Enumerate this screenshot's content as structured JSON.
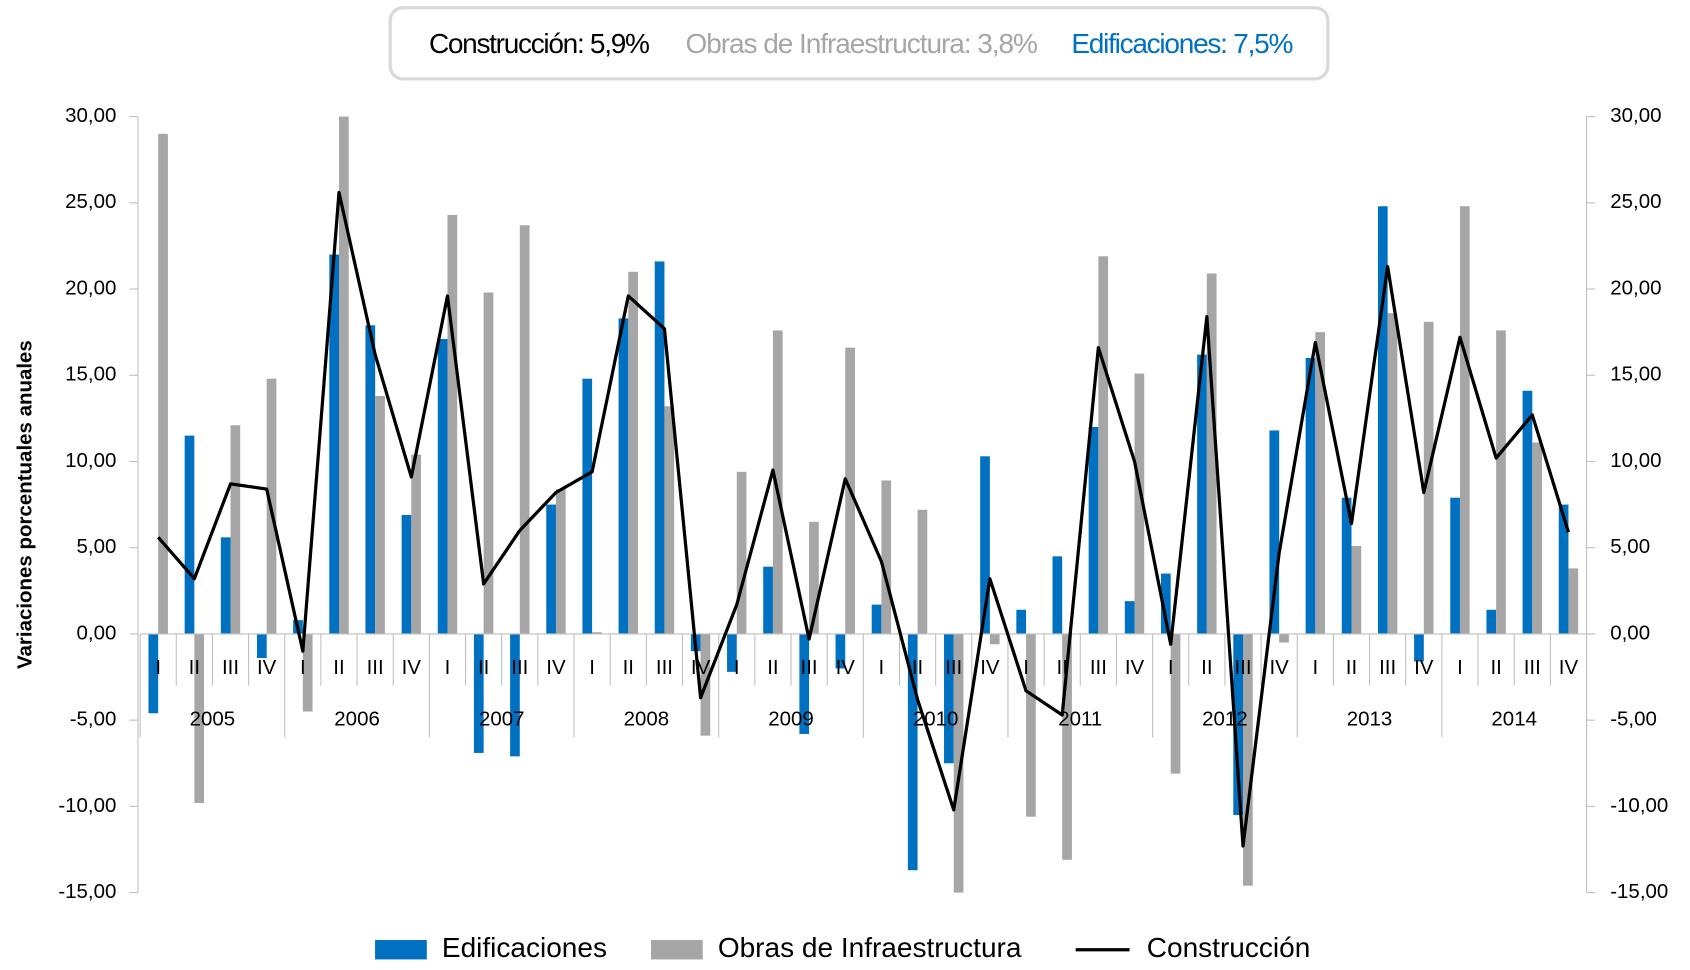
{
  "chart_data": {
    "type": "bar_line",
    "annotations": [
      {
        "text": "Construcción: 5,9%",
        "color": "#000000"
      },
      {
        "text": "Obras de Infraestructura: 3,8%",
        "color": "#a6a6a6"
      },
      {
        "text": "Edificaciones: 7,5%",
        "color": "#0070c0"
      }
    ],
    "ylabel": "Variaciones porcentuales anuales",
    "categories": [
      "I",
      "II",
      "III",
      "IV",
      "I",
      "II",
      "III",
      "IV",
      "I",
      "II",
      "III",
      "IV",
      "I",
      "II",
      "III",
      "IV",
      "I",
      "II",
      "III",
      "IV",
      "I",
      "II",
      "III",
      "IV",
      "I",
      "II",
      "III",
      "IV",
      "I",
      "II",
      "III",
      "IV",
      "I",
      "II",
      "III",
      "IV",
      "I",
      "II",
      "III",
      "IV"
    ],
    "groups": [
      "2005",
      "2006",
      "2007",
      "2008",
      "2009",
      "2010",
      "2011",
      "2012",
      "2013",
      "2014"
    ],
    "series": [
      {
        "name": "Edificaciones",
        "type": "bar",
        "color": "#0070c0",
        "values": [
          -4.6,
          11.5,
          5.6,
          -1.4,
          0.8,
          22.0,
          17.9,
          6.9,
          17.1,
          -6.9,
          -7.1,
          7.5,
          14.8,
          18.3,
          21.6,
          -1.0,
          -2.2,
          3.9,
          -5.8,
          -2.0,
          1.7,
          -13.7,
          -7.5,
          10.3,
          1.4,
          4.5,
          12.0,
          1.9,
          3.5,
          16.2,
          -10.5,
          11.8,
          16.0,
          7.9,
          24.8,
          -1.6,
          7.9,
          1.4,
          14.1,
          7.5
        ]
      },
      {
        "name": "Obras de Infraestructura",
        "type": "bar",
        "color": "#a6a6a6",
        "values": [
          29.0,
          -9.8,
          12.1,
          14.8,
          -4.5,
          30.0,
          13.8,
          10.4,
          24.3,
          19.8,
          23.7,
          8.4,
          0.1,
          21.0,
          13.2,
          -5.9,
          9.4,
          17.6,
          6.5,
          16.6,
          8.9,
          7.2,
          -15.0,
          -0.6,
          -10.6,
          -13.1,
          21.9,
          15.1,
          -8.1,
          20.9,
          -14.6,
          -0.5,
          17.5,
          5.1,
          18.6,
          18.1,
          24.8,
          17.6,
          11.1,
          3.8
        ]
      },
      {
        "name": "Construcción",
        "type": "line",
        "color": "#000000",
        "values": [
          5.6,
          3.2,
          8.7,
          8.4,
          -1.0,
          25.6,
          16.2,
          9.1,
          19.6,
          2.9,
          6.0,
          8.2,
          9.4,
          19.6,
          17.7,
          -3.7,
          1.7,
          9.5,
          -0.3,
          9.0,
          4.2,
          -3.8,
          -10.2,
          3.2,
          -3.3,
          -4.7,
          16.6,
          10.0,
          -0.6,
          18.4,
          -12.3,
          4.7,
          16.9,
          6.4,
          21.3,
          8.2,
          17.2,
          10.2,
          12.7,
          5.9
        ]
      }
    ],
    "ylim": [
      -15,
      30
    ],
    "yticks": [
      {
        "value": 30,
        "label": "30,00"
      },
      {
        "value": 25,
        "label": "25,00"
      },
      {
        "value": 20,
        "label": "20,00"
      },
      {
        "value": 15,
        "label": "15,00"
      },
      {
        "value": 10,
        "label": "10,00"
      },
      {
        "value": 5,
        "label": "5,00"
      },
      {
        "value": 0,
        "label": "0,00"
      },
      {
        "value": -5,
        "label": "-5,00"
      },
      {
        "value": -10,
        "label": "-10,00"
      },
      {
        "value": -15,
        "label": "-15,00"
      }
    ],
    "y2lim": [
      -15,
      30
    ],
    "y2ticks": [
      {
        "value": 30,
        "label": "30,00"
      },
      {
        "value": 25,
        "label": "25,00"
      },
      {
        "value": 20,
        "label": "20,00"
      },
      {
        "value": 15,
        "label": "15,00"
      },
      {
        "value": 10,
        "label": "10,00"
      },
      {
        "value": 5,
        "label": "5,00"
      },
      {
        "value": 0,
        "label": "0,00"
      },
      {
        "value": -5,
        "label": "-5,00"
      },
      {
        "value": -10,
        "label": "-10,00"
      },
      {
        "value": -15,
        "label": "-15,00"
      }
    ],
    "legend": "bottom"
  }
}
